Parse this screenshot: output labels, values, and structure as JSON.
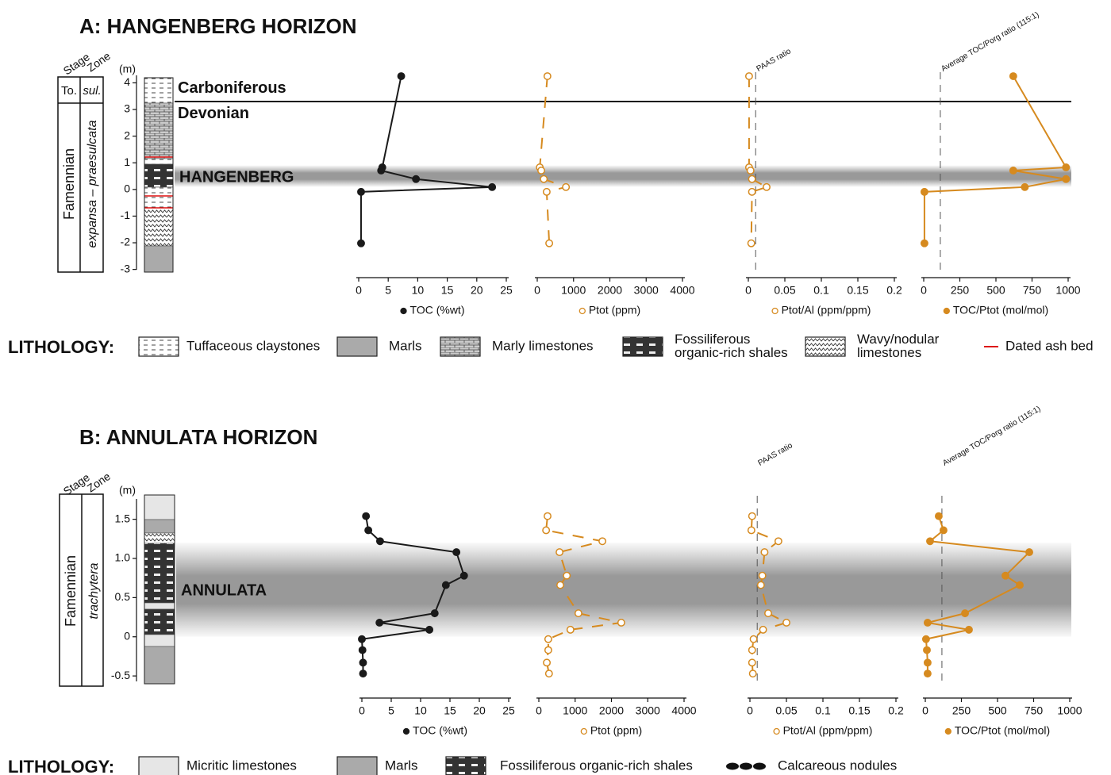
{
  "chart_data": [
    {
      "type": "line",
      "xlabel": "TOC (%wt)",
      "color": "#1a1a1a",
      "marker": "filled",
      "linestyle": "solid",
      "x": [
        7.2,
        4.0,
        3.8,
        9.7,
        22.6,
        0.4,
        0.4
      ],
      "y": [
        4.25,
        0.83,
        0.71,
        0.39,
        0.09,
        -0.09,
        -2.02
      ],
      "xlim": [
        0,
        25
      ],
      "xticks": [
        0,
        5,
        10,
        15,
        20,
        25
      ]
    },
    {
      "type": "line",
      "xlabel": "Ptot (ppm)",
      "color": "#d68a1f",
      "marker": "open",
      "linestyle": "dashed",
      "x": [
        280,
        70,
        110,
        180,
        790,
        260,
        330
      ],
      "y": [
        4.25,
        0.83,
        0.71,
        0.39,
        0.09,
        -0.09,
        -2.02
      ],
      "xlim": [
        0,
        4000
      ],
      "xticks": [
        0,
        1000,
        2000,
        3000,
        4000
      ]
    },
    {
      "type": "line",
      "xlabel": "Ptot/Al (ppm/ppm)",
      "color": "#d68a1f",
      "marker": "open",
      "linestyle": "dashed",
      "x": [
        0.001,
        0.001,
        0.003,
        0.005,
        0.025,
        0.005,
        0.004
      ],
      "y": [
        4.25,
        0.83,
        0.71,
        0.39,
        0.09,
        -0.09,
        -2.02
      ],
      "xlim": [
        0,
        0.2
      ],
      "xticks": [
        0,
        0.05,
        0.1,
        0.15,
        0.2
      ],
      "ref_line": {
        "value": 0.01,
        "label": "PAAS ratio"
      }
    },
    {
      "type": "line",
      "xlabel": "TOC/Ptot (mol/mol)",
      "color": "#d68a1f",
      "marker": "filled",
      "linestyle": "solid",
      "x": [
        620,
        985,
        620,
        985,
        700,
        5,
        5
      ],
      "y": [
        4.25,
        0.83,
        0.71,
        0.39,
        0.09,
        -0.09,
        -2.02
      ],
      "xlim": [
        0,
        1000
      ],
      "xticks": [
        0,
        250,
        500,
        750,
        1000
      ],
      "ref_line": {
        "value": 115,
        "label": "Average TOC/Porg ratio (115:1)"
      }
    },
    {
      "type": "line",
      "xlabel": "TOC (%wt)",
      "color": "#1a1a1a",
      "marker": "filled",
      "linestyle": "solid",
      "x": [
        0.7,
        1.1,
        3.1,
        16.1,
        17.4,
        14.3,
        12.4,
        3.0,
        11.5,
        0,
        0.1,
        0.2,
        0.2
      ],
      "y": [
        1.54,
        1.36,
        1.22,
        1.08,
        0.78,
        0.66,
        0.3,
        0.18,
        0.09,
        -0.03,
        -0.17,
        -0.33,
        -0.47
      ],
      "xlim": [
        0,
        25
      ],
      "xticks": [
        0,
        5,
        10,
        15,
        20,
        25
      ]
    },
    {
      "type": "line",
      "xlabel": "Ptot (ppm)",
      "color": "#d68a1f",
      "marker": "open",
      "linestyle": "dashed",
      "x": [
        240,
        200,
        1750,
        570,
        770,
        590,
        1090,
        2270,
        870,
        260,
        260,
        220,
        280
      ],
      "y": [
        1.54,
        1.36,
        1.22,
        1.08,
        0.78,
        0.66,
        0.3,
        0.18,
        0.09,
        -0.03,
        -0.17,
        -0.33,
        -0.47
      ],
      "xlim": [
        0,
        4000
      ],
      "xticks": [
        0,
        1000,
        2000,
        3000,
        4000
      ]
    },
    {
      "type": "line",
      "xlabel": "Ptot/Al (ppm/ppm)",
      "color": "#d68a1f",
      "marker": "open",
      "linestyle": "dashed",
      "x": [
        0.003,
        0.002,
        0.039,
        0.02,
        0.017,
        0.015,
        0.025,
        0.05,
        0.018,
        0.005,
        0.003,
        0.003,
        0.004
      ],
      "y": [
        1.54,
        1.36,
        1.22,
        1.08,
        0.78,
        0.66,
        0.3,
        0.18,
        0.09,
        -0.03,
        -0.17,
        -0.33,
        -0.47
      ],
      "xlim": [
        0,
        0.2
      ],
      "xticks": [
        0,
        0.05,
        0.1,
        0.15,
        0.2
      ],
      "ref_line": {
        "value": 0.01,
        "label": "PAAS ratio"
      }
    },
    {
      "type": "line",
      "xlabel": "TOC/Ptot (mol/mol)",
      "color": "#d68a1f",
      "marker": "filled",
      "linestyle": "solid",
      "x": [
        93,
        126,
        33,
        720,
        555,
        654,
        275,
        16,
        302,
        5,
        11,
        16,
        16
      ],
      "y": [
        1.54,
        1.36,
        1.22,
        1.08,
        0.78,
        0.66,
        0.3,
        0.18,
        0.09,
        -0.03,
        -0.17,
        -0.33,
        -0.47
      ],
      "xlim": [
        0,
        1000
      ],
      "xticks": [
        0,
        250,
        500,
        750,
        1000
      ],
      "ref_line": {
        "value": 115,
        "label": "Average TOC/Porg ratio (115:1)"
      }
    }
  ],
  "panels": [
    {
      "title": "A: HANGENBERG HORIZON",
      "stage_header": "Stage",
      "zone_header": "Zone",
      "stages": [
        "To.",
        "Famennian"
      ],
      "zones": [
        "sul.",
        "expansa – praesulcata"
      ],
      "depth": {
        "label": "(m)",
        "ylim": [
          -3.1,
          4.4
        ],
        "yticks": [
          -3,
          -2,
          -1,
          0,
          1,
          2,
          3,
          4
        ]
      },
      "boundary": {
        "value": 3.3,
        "above": "Carboniferous",
        "below": "Devonian"
      },
      "horizon": {
        "label": "HANGENBERG",
        "range": [
          0.1,
          0.9
        ]
      },
      "lithology": {
        "title": "LITHOLOGY:",
        "items": [
          [
            "Tuffaceous claystones"
          ],
          [
            "Marls"
          ],
          [
            "Marly limestones"
          ],
          [
            "Fossiliferous",
            "organic-rich shales"
          ],
          [
            "Wavy/nodular",
            "limestones"
          ],
          [
            "Dated ash bed"
          ]
        ]
      }
    },
    {
      "title": "B: ANNULATA HORIZON",
      "stage_header": "Stage",
      "zone_header": "Zone",
      "stages": [
        "Famennian"
      ],
      "zones": [
        "trachytera"
      ],
      "depth": {
        "label": "(m)",
        "ylim": [
          -0.6,
          1.8
        ],
        "yticks": [
          -0.5,
          0,
          0.5,
          {
            "value": 1,
            "label": "1.0"
          },
          1.5
        ]
      },
      "horizon": {
        "label": "ANNULATA",
        "range": [
          0,
          1.2
        ]
      },
      "lithology": {
        "title": "LITHOLOGY:",
        "items": [
          [
            "Micritic limestones"
          ],
          [
            "Marls"
          ],
          [
            "Fossiliferous organic-rich shales"
          ],
          [
            "Calcareous nodules"
          ]
        ]
      }
    }
  ]
}
